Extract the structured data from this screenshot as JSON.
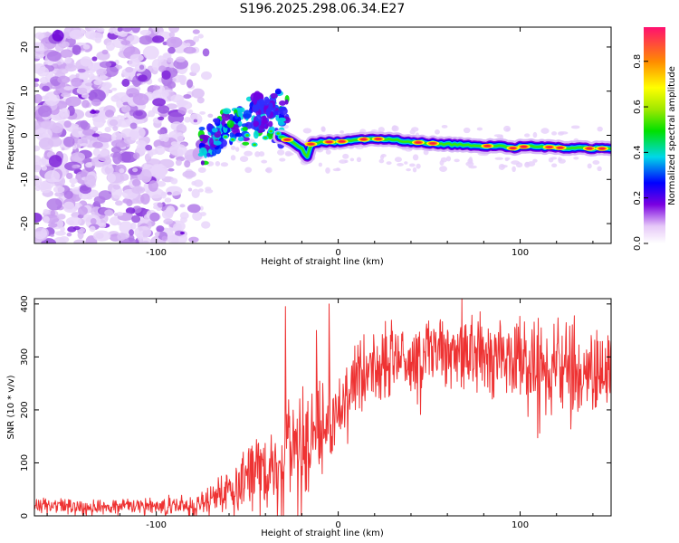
{
  "title": "S196.2025.298.06.34.E27",
  "chart_data": [
    {
      "type": "heatmap",
      "xlabel": "Height of straight line (km)",
      "ylabel": "Frequency (Hz)",
      "xlim": [
        -167,
        150
      ],
      "ylim": [
        -24.5,
        24.5
      ],
      "xticks": [
        -100,
        0,
        100
      ],
      "yticks": [
        -20,
        -10,
        0,
        10,
        20
      ],
      "colorbar": {
        "label": "Normalized spectral amplitude",
        "range": [
          0,
          0.95
        ],
        "ticks": [
          0.0,
          0.2,
          0.4,
          0.6,
          0.8
        ]
      },
      "ridge": {
        "x": [
          -72,
          -65,
          -58,
          -50,
          -44,
          -38,
          -33,
          -28,
          -24,
          -20,
          -17,
          -15,
          -10,
          -5,
          0,
          10,
          20,
          30,
          40,
          50,
          60,
          70,
          80,
          90,
          95,
          100,
          110,
          120,
          130,
          140,
          148
        ],
        "freq": [
          -4,
          -1,
          1,
          0,
          -1,
          1,
          0,
          -1,
          -2,
          -3,
          -5,
          -2,
          -1.5,
          -1.5,
          -1.5,
          -1,
          -0.8,
          -1,
          -1.5,
          -1.8,
          -2,
          -2.2,
          -2.4,
          -2.5,
          -3,
          -2.6,
          -2.5,
          -2.8,
          -2.9,
          -3,
          -3
        ]
      },
      "noise_region": {
        "x_from": -167,
        "x_to": -75
      }
    },
    {
      "type": "line",
      "xlabel": "Height of straight line (km)",
      "ylabel": "SNR (10 * v/v)",
      "xlim": [
        -167,
        150
      ],
      "ylim": [
        0,
        410
      ],
      "xticks": [
        -100,
        0,
        100
      ],
      "yticks": [
        0,
        100,
        200,
        300,
        400
      ],
      "color": "#ee3333",
      "envelope": {
        "x": [
          -167,
          -120,
          -80,
          -65,
          -55,
          -45,
          -40,
          -33,
          -28,
          -20,
          -15,
          -10,
          -5,
          0,
          5,
          10,
          15,
          20,
          30,
          40,
          50,
          60,
          70,
          80,
          90,
          100,
          110,
          120,
          130,
          140,
          150
        ],
        "mean": [
          18,
          18,
          20,
          40,
          60,
          80,
          85,
          100,
          120,
          150,
          160,
          170,
          180,
          200,
          230,
          260,
          275,
          285,
          295,
          300,
          305,
          310,
          310,
          305,
          300,
          295,
          290,
          285,
          280,
          275,
          275
        ],
        "spread": [
          12,
          12,
          14,
          25,
          40,
          55,
          55,
          60,
          65,
          70,
          70,
          65,
          60,
          55,
          55,
          60,
          60,
          60,
          60,
          55,
          55,
          55,
          60,
          60,
          60,
          65,
          65,
          70,
          70,
          70,
          70
        ]
      },
      "spikes": [
        {
          "x": -29,
          "value": 395
        },
        {
          "x": -5,
          "value": 400
        },
        {
          "x": -12,
          "value": 350
        },
        {
          "x": 68,
          "value": 410
        }
      ]
    }
  ]
}
